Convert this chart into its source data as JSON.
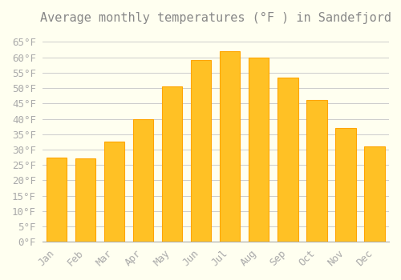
{
  "months": [
    "Jan",
    "Feb",
    "Mar",
    "Apr",
    "May",
    "Jun",
    "Jul",
    "Aug",
    "Sep",
    "Oct",
    "Nov",
    "Dec"
  ],
  "values": [
    27.5,
    27.0,
    32.5,
    40.0,
    50.5,
    59.0,
    62.0,
    60.0,
    53.5,
    46.0,
    37.0,
    31.0
  ],
  "bar_color_face": "#FFC125",
  "bar_color_edge": "#FFA500",
  "background_color": "#FFFFF0",
  "grid_color": "#CCCCCC",
  "title": "Average monthly temperatures (°F ) in Sandefjord",
  "title_fontsize": 11,
  "tick_label_fontsize": 9,
  "ylim": [
    0,
    68
  ],
  "yticks": [
    0,
    5,
    10,
    15,
    20,
    25,
    30,
    35,
    40,
    45,
    50,
    55,
    60,
    65
  ],
  "font_color": "#AAAAAA",
  "title_color": "#888888"
}
